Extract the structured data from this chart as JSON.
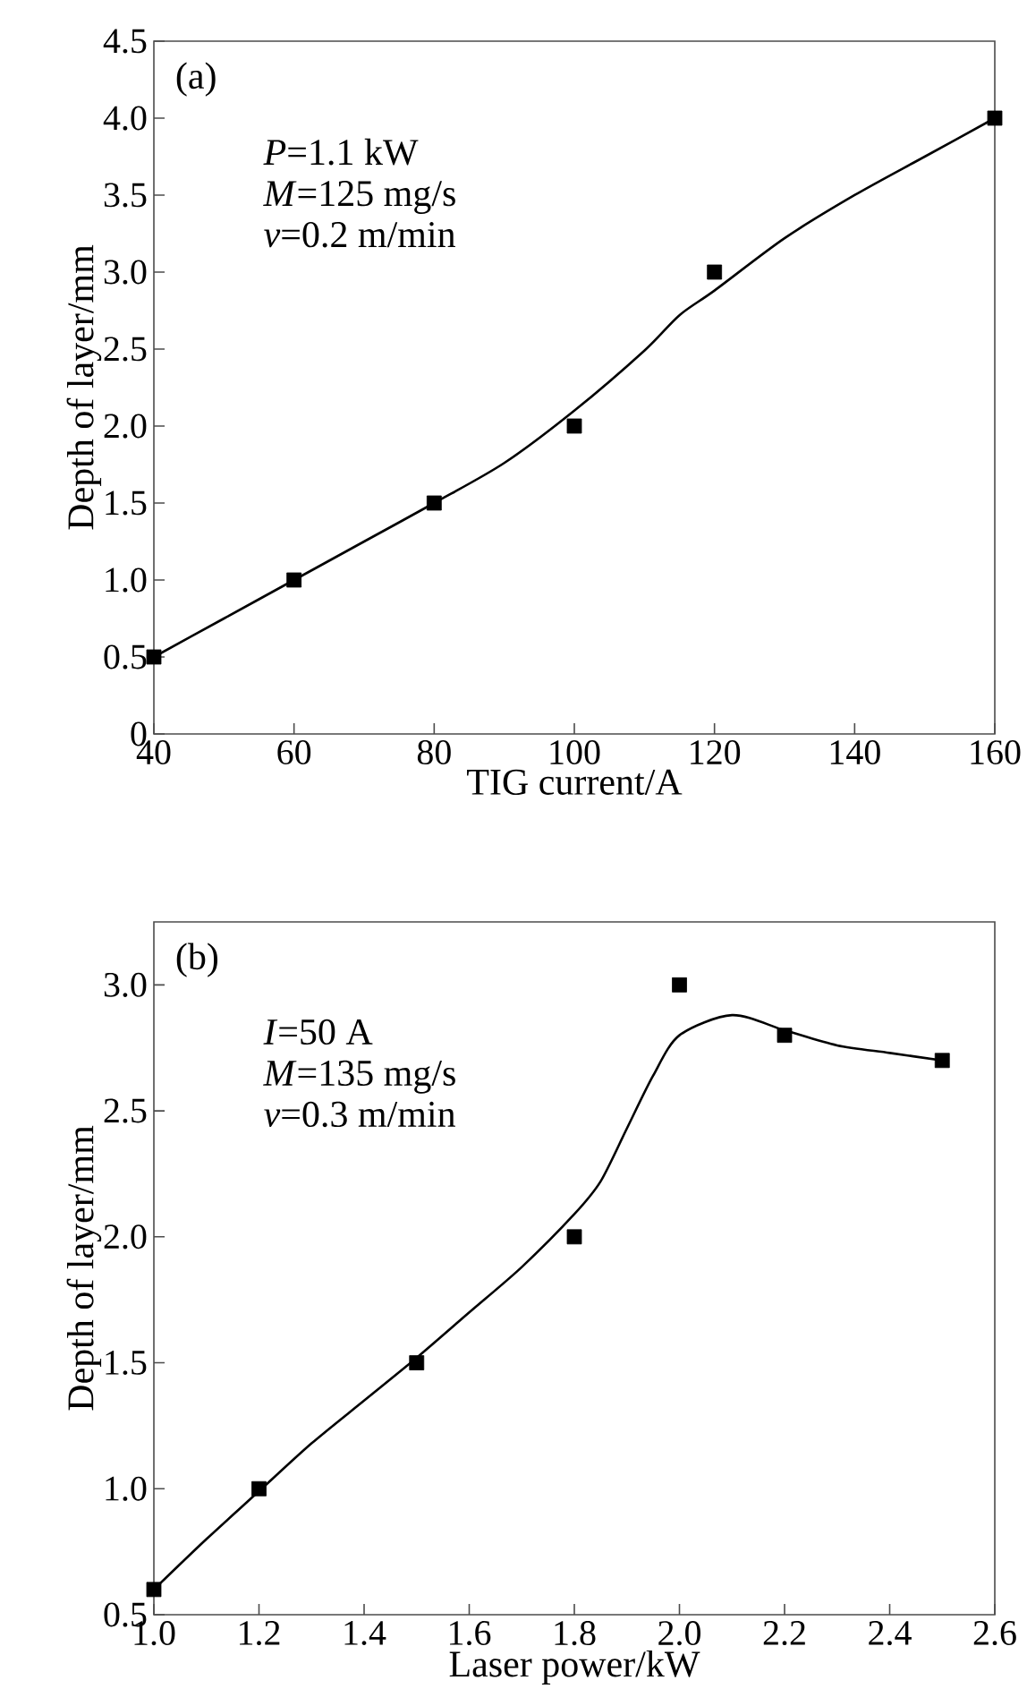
{
  "chart_data": [
    {
      "type": "scatter",
      "xlabel": "TIG current/A",
      "ylabel": "Depth of layer/mm",
      "xlim": [
        40,
        160
      ],
      "ylim": [
        0,
        4.5
      ],
      "xticks": [
        40,
        60,
        80,
        100,
        120,
        140,
        160
      ],
      "yticks": [
        0,
        0.5,
        {
          "value": 1,
          "label": "1.0"
        },
        1.5,
        {
          "value": 2,
          "label": "2.0"
        },
        2.5,
        {
          "value": 3,
          "label": "3.0"
        },
        3.5,
        {
          "value": 4,
          "label": "4.0"
        },
        4.5
      ],
      "annotations": [
        "(a)",
        "*P*=1.1 kW",
        "*M*=125 mg/s",
        "*v*=0.2 m/min"
      ],
      "series": [
        {
          "color": "#000000",
          "marker": "square",
          "x": [
            40,
            60,
            80,
            100,
            120,
            160
          ],
          "values": [
            0.5,
            1.0,
            1.5,
            2.0,
            3.0,
            4.0
          ]
        },
        {
          "type": "line",
          "color": "#000000",
          "line_style": "solid",
          "x": [
            40,
            50,
            60,
            70,
            80,
            90,
            100,
            110,
            115,
            120,
            130,
            140,
            150,
            160
          ],
          "values": [
            0.5,
            0.75,
            1.0,
            1.25,
            1.5,
            1.76,
            2.1,
            2.49,
            2.72,
            2.88,
            3.22,
            3.5,
            3.75,
            4.0
          ]
        }
      ]
    },
    {
      "type": "scatter",
      "xlabel": "Laser power/kW",
      "ylabel": "Depth of layer/mm",
      "xlim": [
        1.0,
        2.6
      ],
      "ylim": [
        0.5,
        3.25
      ],
      "xticks": [
        {
          "value": 1,
          "label": "1.0"
        },
        1.2,
        1.4,
        1.6,
        1.8,
        {
          "value": 2,
          "label": "2.0"
        },
        2.2,
        2.4,
        2.6
      ],
      "yticks": [
        0.5,
        {
          "value": 1,
          "label": "1.0"
        },
        1.5,
        {
          "value": 2,
          "label": "2.0"
        },
        2.5,
        {
          "value": 3,
          "label": "3.0"
        }
      ],
      "annotations": [
        "(b)",
        "*I*=50 A",
        "*M*=135 mg/s",
        "*v*=0.3 m/min"
      ],
      "series": [
        {
          "color": "#000000",
          "marker": "square",
          "x": [
            1.0,
            1.2,
            1.5,
            1.8,
            2.0,
            2.2,
            2.5
          ],
          "values": [
            0.6,
            1.0,
            1.5,
            2.0,
            3.0,
            2.8,
            2.7
          ]
        },
        {
          "type": "line",
          "color": "#000000",
          "line_style": "solid",
          "x": [
            1.0,
            1.1,
            1.2,
            1.3,
            1.4,
            1.5,
            1.6,
            1.7,
            1.8,
            1.85,
            1.9,
            1.95,
            2.0,
            2.1,
            2.2,
            2.3,
            2.4,
            2.5
          ],
          "values": [
            0.6,
            0.8,
            0.99,
            1.18,
            1.35,
            1.52,
            1.7,
            1.88,
            2.09,
            2.22,
            2.43,
            2.64,
            2.8,
            2.88,
            2.82,
            2.76,
            2.73,
            2.7
          ]
        }
      ]
    }
  ]
}
